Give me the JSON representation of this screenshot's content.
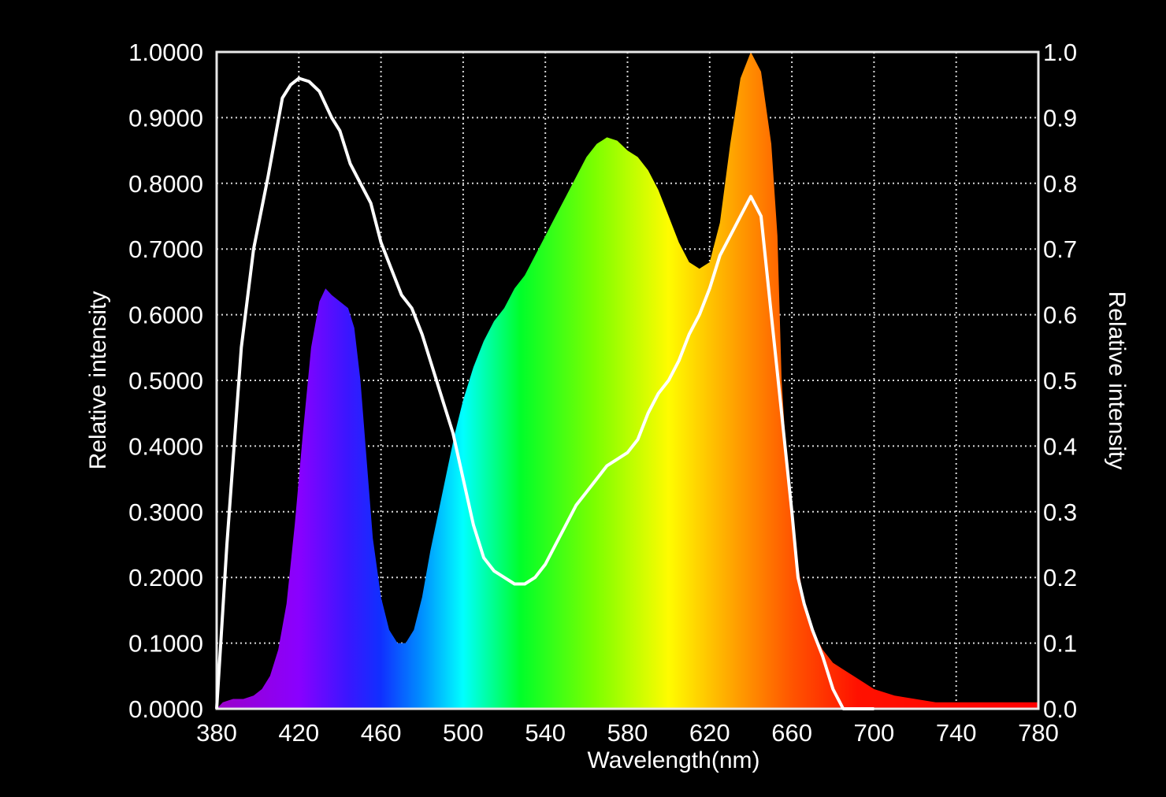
{
  "chart_data": {
    "type": "area",
    "title": "",
    "xlabel": "Wavelength(nm)",
    "ylabel_left": "Relative intensity",
    "ylabel_right": "Relative intensity",
    "xlim": [
      380,
      780
    ],
    "ylim_left": [
      0,
      1
    ],
    "ylim_right": [
      0,
      1
    ],
    "grid": true,
    "x_ticks": [
      "380",
      "420",
      "460",
      "500",
      "540",
      "580",
      "620",
      "660",
      "700",
      "740",
      "780"
    ],
    "y_ticks_left": [
      "1.0000",
      "0.9000",
      "0.8000",
      "0.7000",
      "0.6000",
      "0.5000",
      "0.4000",
      "0.3000",
      "0.2000",
      "0.1000",
      "0.0000"
    ],
    "y_ticks_right": [
      "1.0",
      "0.9",
      "0.8",
      "0.7",
      "0.6",
      "0.5",
      "0.4",
      "0.3",
      "0.2",
      "0.1",
      "0.0"
    ],
    "series": [
      {
        "style": "spectrum-filled-area",
        "axis": "left",
        "x": [
          380,
          383,
          388,
          393,
          398,
          402,
          406,
          410,
          414,
          418,
          422,
          426,
          430,
          433,
          436,
          440,
          444,
          447,
          450,
          453,
          456,
          460,
          464,
          468,
          472,
          476,
          480,
          484,
          488,
          492,
          496,
          500,
          505,
          510,
          515,
          520,
          525,
          530,
          535,
          540,
          545,
          550,
          555,
          560,
          565,
          570,
          575,
          580,
          585,
          590,
          595,
          600,
          605,
          610,
          615,
          620,
          625,
          630,
          635,
          640,
          645,
          650,
          653,
          655,
          658,
          662,
          666,
          670,
          675,
          680,
          685,
          690,
          695,
          700,
          710,
          720,
          730,
          740,
          750,
          760,
          770,
          780
        ],
        "y": [
          0.0,
          0.01,
          0.015,
          0.015,
          0.02,
          0.03,
          0.05,
          0.09,
          0.16,
          0.28,
          0.42,
          0.55,
          0.62,
          0.64,
          0.63,
          0.62,
          0.61,
          0.58,
          0.5,
          0.38,
          0.26,
          0.17,
          0.12,
          0.1,
          0.1,
          0.12,
          0.17,
          0.24,
          0.3,
          0.36,
          0.42,
          0.47,
          0.52,
          0.56,
          0.59,
          0.61,
          0.64,
          0.66,
          0.69,
          0.72,
          0.75,
          0.78,
          0.81,
          0.84,
          0.86,
          0.87,
          0.865,
          0.85,
          0.84,
          0.82,
          0.79,
          0.75,
          0.71,
          0.68,
          0.67,
          0.68,
          0.74,
          0.86,
          0.96,
          1.0,
          0.97,
          0.86,
          0.72,
          0.5,
          0.35,
          0.24,
          0.16,
          0.12,
          0.09,
          0.07,
          0.06,
          0.05,
          0.04,
          0.03,
          0.02,
          0.015,
          0.01,
          0.01,
          0.01,
          0.01,
          0.01,
          0.01
        ]
      },
      {
        "style": "white-line",
        "axis": "right",
        "x": [
          380,
          385,
          392,
          398,
          405,
          412,
          416,
          420,
          425,
          430,
          436,
          440,
          445,
          450,
          455,
          460,
          465,
          470,
          475,
          480,
          485,
          490,
          495,
          500,
          505,
          510,
          515,
          520,
          525,
          530,
          535,
          540,
          545,
          550,
          555,
          560,
          565,
          570,
          575,
          580,
          585,
          590,
          595,
          600,
          605,
          610,
          615,
          620,
          625,
          630,
          635,
          640,
          645,
          650,
          655,
          660,
          663,
          666,
          670,
          675,
          680,
          685,
          690,
          695,
          700
        ],
        "y": [
          0.0,
          0.25,
          0.55,
          0.7,
          0.81,
          0.93,
          0.95,
          0.96,
          0.955,
          0.94,
          0.9,
          0.88,
          0.83,
          0.8,
          0.77,
          0.71,
          0.67,
          0.63,
          0.61,
          0.57,
          0.52,
          0.47,
          0.42,
          0.35,
          0.28,
          0.23,
          0.21,
          0.2,
          0.19,
          0.19,
          0.2,
          0.22,
          0.25,
          0.28,
          0.31,
          0.33,
          0.35,
          0.37,
          0.38,
          0.39,
          0.41,
          0.45,
          0.48,
          0.5,
          0.53,
          0.57,
          0.6,
          0.64,
          0.69,
          0.72,
          0.75,
          0.78,
          0.75,
          0.6,
          0.45,
          0.3,
          0.2,
          0.16,
          0.12,
          0.08,
          0.03,
          0.0,
          0.0,
          0.0,
          0.0
        ]
      }
    ]
  }
}
